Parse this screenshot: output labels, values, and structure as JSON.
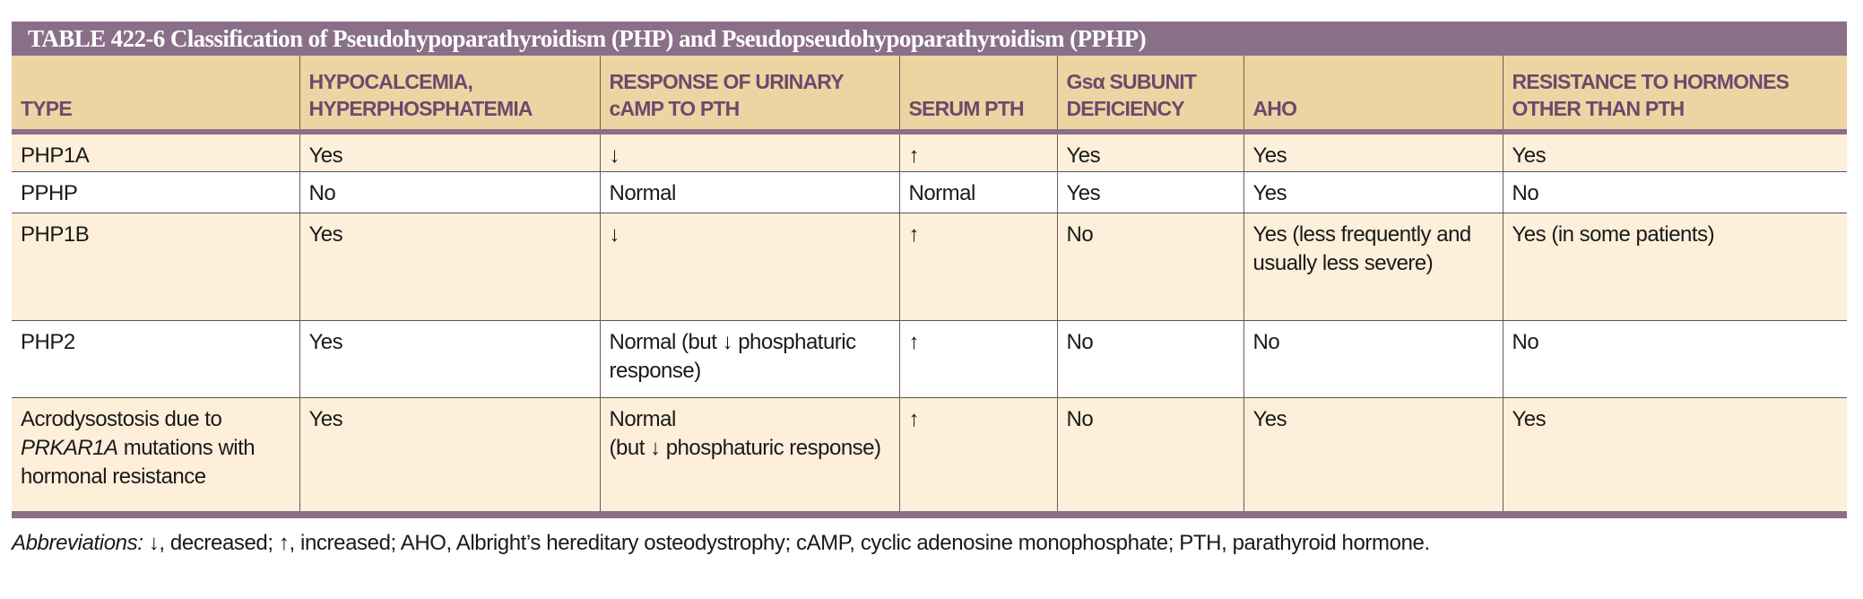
{
  "title": "TABLE 422-6  Classification of Pseudohypoparathyroidism (PHP) and Pseudopseudohypoparathyroidism (PPHP)",
  "headers": {
    "type": "TYPE",
    "hypo": [
      "HYPOCALCEMIA,",
      "HYPERPHOSPHATEMIA"
    ],
    "camp": [
      "RESPONSE OF URINARY",
      "cAMP TO PTH"
    ],
    "pth": "SERUM PTH",
    "gsa": [
      "Gsα SUBUNIT",
      "DEFICIENCY"
    ],
    "aho": "AHO",
    "resist": [
      "RESISTANCE TO HORMONES",
      "OTHER THAN PTH"
    ]
  },
  "rows": [
    {
      "type": "PHP1A",
      "hypo": "Yes",
      "camp": "↓",
      "pth": "↑",
      "gsa": "Yes",
      "aho": "Yes",
      "resist": "Yes"
    },
    {
      "type": "PPHP",
      "hypo": "No",
      "camp": "Normal",
      "pth": "Normal",
      "gsa": "Yes",
      "aho": "Yes",
      "resist": "No"
    },
    {
      "type": "PHP1B",
      "hypo": "Yes",
      "camp": "↓",
      "pth": "↑",
      "gsa": "No",
      "aho": "Yes (less frequently and usually less severe)",
      "resist": "Yes (in some patients)"
    },
    {
      "type": "PHP2",
      "hypo": "Yes",
      "camp": "Normal (but ↓ phosphaturic response)",
      "pth": "↑",
      "gsa": "No",
      "aho": "No",
      "resist": "No"
    },
    {
      "type_pre": "Acrodysostosis due to",
      "type_gene": "PRKAR1A",
      "type_post": "mutations with hormonal resistance",
      "hypo": "Yes",
      "camp_a": "Normal",
      "camp_b": "(but ↓ phosphaturic response)",
      "pth": "↑",
      "gsa": "No",
      "aho": "Yes",
      "resist": "Yes"
    }
  ],
  "footnote": {
    "label": "Abbreviations:",
    "text": " ↓, decreased; ↑, increased; AHO, Albright’s hereditary osteodystrophy; cAMP, cyclic adenosine monophosphate; PTH, parathyroid hormone."
  },
  "colors": {
    "title_bg": "#8a6f88",
    "header_bg": "#edd4a2",
    "header_text": "#6c4a6c",
    "row_alt": "#fdefda"
  }
}
